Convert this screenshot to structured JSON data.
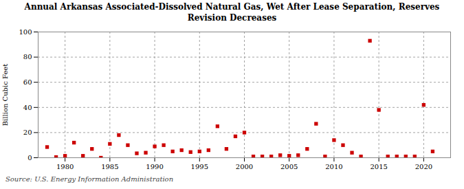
{
  "chart_data": {
    "type": "scatter",
    "title": "Annual Arkansas Associated-Dissolved Natural Gas, Wet After Lease Separation, Reserves\nRevision Decreases",
    "ylabel": "Billion Cubic Feet",
    "source": "Source: U.S. Energy Information Administration",
    "x": [
      1978,
      1979,
      1980,
      1981,
      1982,
      1983,
      1984,
      1985,
      1986,
      1987,
      1988,
      1989,
      1990,
      1991,
      1992,
      1993,
      1994,
      1995,
      1996,
      1997,
      1998,
      1999,
      2000,
      2001,
      2002,
      2003,
      2004,
      2005,
      2006,
      2007,
      2008,
      2009,
      2010,
      2011,
      2012,
      2013,
      2014,
      2015,
      2016,
      2017,
      2018,
      2019,
      2020,
      2021
    ],
    "values": [
      8.5,
      0.5,
      1.5,
      12,
      1.5,
      7,
      0,
      11,
      18,
      10,
      3.5,
      4,
      9,
      10,
      5,
      6,
      4.5,
      5,
      6,
      25,
      7,
      17,
      20,
      1,
      1,
      1,
      2,
      1.5,
      2,
      7,
      27,
      1,
      14,
      10,
      4,
      1,
      93,
      38,
      1,
      1,
      1,
      1,
      42,
      5
    ],
    "color": "#cc0000",
    "marker": "square",
    "xlim": [
      1977,
      2023
    ],
    "ylim": [
      0,
      100
    ],
    "xticks": [
      1980,
      1985,
      1990,
      1995,
      2000,
      2005,
      2010,
      2015,
      2020
    ],
    "yticks": [
      0,
      20,
      40,
      60,
      80,
      100
    ],
    "grid": true
  }
}
